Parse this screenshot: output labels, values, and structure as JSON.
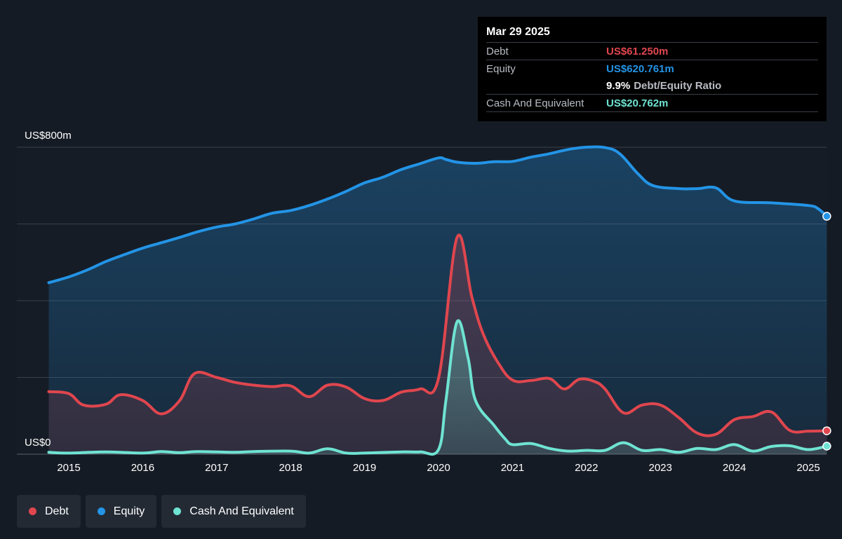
{
  "colors": {
    "debt": "#e0464e",
    "equity": "#2394e6",
    "cash": "#6fe3d2",
    "background": "#151b24",
    "grid": "#3a404a"
  },
  "tooltip": {
    "date": "Mar 29 2025",
    "debt_label": "Debt",
    "debt_value": "US$61.250m",
    "equity_label": "Equity",
    "equity_value": "US$620.761m",
    "ratio_value": "9.9%",
    "ratio_label": "Debt/Equity Ratio",
    "cash_label": "Cash And Equivalent",
    "cash_value": "US$20.762m"
  },
  "legend": [
    {
      "key": "debt",
      "label": "Debt"
    },
    {
      "key": "equity",
      "label": "Equity"
    },
    {
      "key": "cash",
      "label": "Cash And Equivalent"
    }
  ],
  "chart_data": {
    "type": "area",
    "y_top_label": "US$800m",
    "y_bottom_label": "US$0",
    "ylim": [
      0,
      800
    ],
    "xlim": [
      2014.7,
      2025.25
    ],
    "x_ticks": [
      "2015",
      "2016",
      "2017",
      "2018",
      "2019",
      "2020",
      "2021",
      "2022",
      "2023",
      "2024",
      "2025"
    ],
    "grid": true,
    "series": [
      {
        "name": "Equity",
        "key": "equity",
        "points": [
          [
            2014.73,
            447
          ],
          [
            2015.0,
            462
          ],
          [
            2015.25,
            480
          ],
          [
            2015.5,
            502
          ],
          [
            2015.75,
            520
          ],
          [
            2016.0,
            537
          ],
          [
            2016.25,
            551
          ],
          [
            2016.5,
            565
          ],
          [
            2016.75,
            580
          ],
          [
            2017.0,
            592
          ],
          [
            2017.25,
            600
          ],
          [
            2017.5,
            613
          ],
          [
            2017.75,
            628
          ],
          [
            2018.0,
            635
          ],
          [
            2018.25,
            648
          ],
          [
            2018.5,
            665
          ],
          [
            2018.75,
            685
          ],
          [
            2019.0,
            707
          ],
          [
            2019.25,
            722
          ],
          [
            2019.5,
            742
          ],
          [
            2019.75,
            757
          ],
          [
            2020.0,
            772
          ],
          [
            2020.1,
            768
          ],
          [
            2020.25,
            761
          ],
          [
            2020.5,
            758
          ],
          [
            2020.75,
            762
          ],
          [
            2021.0,
            763
          ],
          [
            2021.25,
            774
          ],
          [
            2021.5,
            783
          ],
          [
            2021.75,
            794
          ],
          [
            2022.0,
            800
          ],
          [
            2022.25,
            799
          ],
          [
            2022.45,
            783
          ],
          [
            2022.7,
            730
          ],
          [
            2022.9,
            700
          ],
          [
            2023.25,
            692
          ],
          [
            2023.5,
            692
          ],
          [
            2023.75,
            694
          ],
          [
            2024.0,
            660
          ],
          [
            2024.5,
            655
          ],
          [
            2025.0,
            648
          ],
          [
            2025.13,
            640
          ],
          [
            2025.25,
            620
          ]
        ]
      },
      {
        "name": "Debt",
        "key": "debt",
        "points": [
          [
            2014.73,
            163
          ],
          [
            2015.0,
            158
          ],
          [
            2015.2,
            128
          ],
          [
            2015.5,
            130
          ],
          [
            2015.7,
            155
          ],
          [
            2016.0,
            140
          ],
          [
            2016.25,
            105
          ],
          [
            2016.5,
            140
          ],
          [
            2016.7,
            210
          ],
          [
            2017.0,
            200
          ],
          [
            2017.25,
            187
          ],
          [
            2017.5,
            180
          ],
          [
            2017.75,
            176
          ],
          [
            2018.0,
            178
          ],
          [
            2018.25,
            150
          ],
          [
            2018.5,
            180
          ],
          [
            2018.75,
            175
          ],
          [
            2019.0,
            145
          ],
          [
            2019.25,
            140
          ],
          [
            2019.5,
            162
          ],
          [
            2019.75,
            170
          ],
          [
            2020.0,
            198
          ],
          [
            2020.25,
            565
          ],
          [
            2020.45,
            410
          ],
          [
            2020.6,
            315
          ],
          [
            2020.8,
            240
          ],
          [
            2021.0,
            193
          ],
          [
            2021.25,
            192
          ],
          [
            2021.5,
            197
          ],
          [
            2021.7,
            170
          ],
          [
            2021.9,
            195
          ],
          [
            2022.1,
            190
          ],
          [
            2022.25,
            170
          ],
          [
            2022.5,
            108
          ],
          [
            2022.75,
            128
          ],
          [
            2023.0,
            128
          ],
          [
            2023.25,
            95
          ],
          [
            2023.5,
            55
          ],
          [
            2023.75,
            52
          ],
          [
            2024.0,
            90
          ],
          [
            2024.25,
            98
          ],
          [
            2024.5,
            110
          ],
          [
            2024.75,
            62
          ],
          [
            2025.0,
            60
          ],
          [
            2025.25,
            61
          ]
        ]
      },
      {
        "name": "Cash And Equivalent",
        "key": "cash",
        "points": [
          [
            2014.73,
            5
          ],
          [
            2015.0,
            3
          ],
          [
            2015.5,
            6
          ],
          [
            2016.0,
            3
          ],
          [
            2016.25,
            7
          ],
          [
            2016.5,
            4
          ],
          [
            2016.75,
            7
          ],
          [
            2017.25,
            5
          ],
          [
            2017.5,
            7
          ],
          [
            2018.0,
            8
          ],
          [
            2018.25,
            3
          ],
          [
            2018.5,
            14
          ],
          [
            2018.75,
            3
          ],
          [
            2019.0,
            3
          ],
          [
            2019.5,
            6
          ],
          [
            2019.75,
            6
          ],
          [
            2020.0,
            12
          ],
          [
            2020.1,
            140
          ],
          [
            2020.25,
            345
          ],
          [
            2020.4,
            250
          ],
          [
            2020.5,
            140
          ],
          [
            2020.75,
            75
          ],
          [
            2020.9,
            40
          ],
          [
            2021.0,
            25
          ],
          [
            2021.25,
            28
          ],
          [
            2021.5,
            15
          ],
          [
            2021.75,
            8
          ],
          [
            2022.0,
            10
          ],
          [
            2022.25,
            10
          ],
          [
            2022.5,
            30
          ],
          [
            2022.75,
            10
          ],
          [
            2023.0,
            12
          ],
          [
            2023.25,
            5
          ],
          [
            2023.5,
            15
          ],
          [
            2023.75,
            12
          ],
          [
            2024.0,
            25
          ],
          [
            2024.25,
            8
          ],
          [
            2024.5,
            20
          ],
          [
            2024.75,
            22
          ],
          [
            2025.0,
            12
          ],
          [
            2025.25,
            21
          ]
        ]
      }
    ]
  }
}
